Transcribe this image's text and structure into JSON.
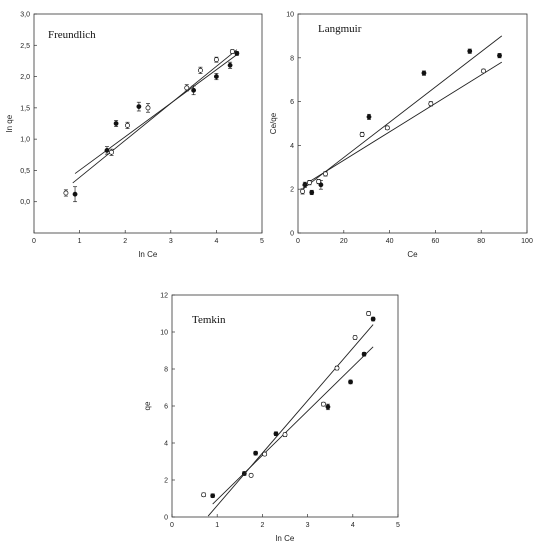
{
  "chart_data": [
    {
      "type": "scatter",
      "title": "Freundlich",
      "xlabel": "ln Ce",
      "ylabel": "ln qe",
      "xlim": [
        0,
        5
      ],
      "ylim": [
        -0.5,
        3.0
      ],
      "xticks": [
        "0",
        "1",
        "2",
        "3",
        "4",
        "5"
      ],
      "yticks": [
        "0,0",
        "0,5",
        "1,0",
        "1,5",
        "2,0",
        "2,5",
        "3,0"
      ],
      "series": [
        {
          "marker": "filled",
          "x": [
            0.9,
            1.6,
            1.8,
            2.3,
            3.5,
            4.0,
            4.3,
            4.45
          ],
          "y": [
            0.12,
            0.82,
            1.25,
            1.52,
            1.78,
            2.0,
            2.18,
            2.37
          ],
          "err": [
            0.12,
            0.06,
            0.05,
            0.07,
            0.07,
            0.05,
            0.05,
            0.03
          ],
          "fit": [
            [
              0.9,
              0.45
            ],
            [
              4.45,
              2.35
            ]
          ]
        },
        {
          "marker": "open",
          "x": [
            0.7,
            1.7,
            2.05,
            2.5,
            3.35,
            3.65,
            4.0,
            4.35
          ],
          "y": [
            0.14,
            0.79,
            1.22,
            1.5,
            1.82,
            2.1,
            2.27,
            2.4
          ],
          "err": [
            0.05,
            0.05,
            0.05,
            0.07,
            0.05,
            0.05,
            0.04,
            0.03
          ],
          "fit": [
            [
              0.85,
              0.3
            ],
            [
              4.45,
              2.43
            ]
          ]
        }
      ]
    },
    {
      "type": "scatter",
      "title": "Langmuir",
      "xlabel": "Ce",
      "ylabel": "Ce/qe",
      "xlim": [
        0,
        100
      ],
      "ylim": [
        0,
        10
      ],
      "xticks": [
        "0",
        "20",
        "40",
        "60",
        "80",
        "100"
      ],
      "yticks": [
        "0",
        "2",
        "4",
        "6",
        "8",
        "10"
      ],
      "series": [
        {
          "marker": "filled",
          "x": [
            3,
            6,
            10,
            31,
            55,
            75,
            88
          ],
          "y": [
            2.2,
            1.85,
            2.2,
            5.3,
            7.3,
            8.3,
            8.1
          ],
          "err": [
            0.12,
            0.1,
            0.2,
            0.12,
            0.1,
            0.1,
            0.1
          ],
          "fit": [
            [
              2,
              2.0
            ],
            [
              89,
              9.0
            ]
          ]
        },
        {
          "marker": "open",
          "x": [
            2,
            5,
            9,
            12,
            28,
            39,
            58,
            81
          ],
          "y": [
            1.9,
            2.3,
            2.35,
            2.7,
            4.5,
            4.8,
            5.9,
            7.4
          ],
          "err": [
            0.12,
            0.1,
            0.1,
            0.1,
            0.1,
            0.08,
            0.1,
            0.08
          ],
          "fit": [
            [
              2,
              2.15
            ],
            [
              89,
              7.8
            ]
          ]
        }
      ]
    },
    {
      "type": "scatter",
      "title": "Temkin",
      "xlabel": "ln Ce",
      "ylabel": "qe",
      "xlim": [
        0,
        5
      ],
      "ylim": [
        0,
        12
      ],
      "xticks": [
        "0",
        "1",
        "2",
        "3",
        "4",
        "5"
      ],
      "yticks": [
        "0",
        "2",
        "4",
        "6",
        "8",
        "10",
        "12"
      ],
      "series": [
        {
          "marker": "filled",
          "x": [
            0.9,
            1.6,
            1.85,
            2.3,
            3.45,
            3.95,
            4.25,
            4.45
          ],
          "y": [
            1.15,
            2.35,
            3.45,
            4.5,
            5.95,
            7.3,
            8.8,
            10.7
          ],
          "err": [
            0.1,
            0.1,
            0.1,
            0.1,
            0.15,
            0.1,
            0.1,
            0.1
          ],
          "fit": [
            [
              0.9,
              0.7
            ],
            [
              4.45,
              9.2
            ]
          ]
        },
        {
          "marker": "open",
          "x": [
            0.7,
            1.75,
            2.05,
            2.5,
            3.35,
            3.65,
            4.05,
            4.35
          ],
          "y": [
            1.2,
            2.25,
            3.4,
            4.45,
            6.1,
            8.05,
            9.7,
            11.0
          ],
          "err": [
            0.1,
            0.08,
            0.08,
            0.1,
            0.1,
            0.1,
            0.1,
            0.1
          ],
          "fit": [
            [
              0.8,
              0.05
            ],
            [
              4.45,
              10.4
            ]
          ]
        }
      ]
    }
  ]
}
